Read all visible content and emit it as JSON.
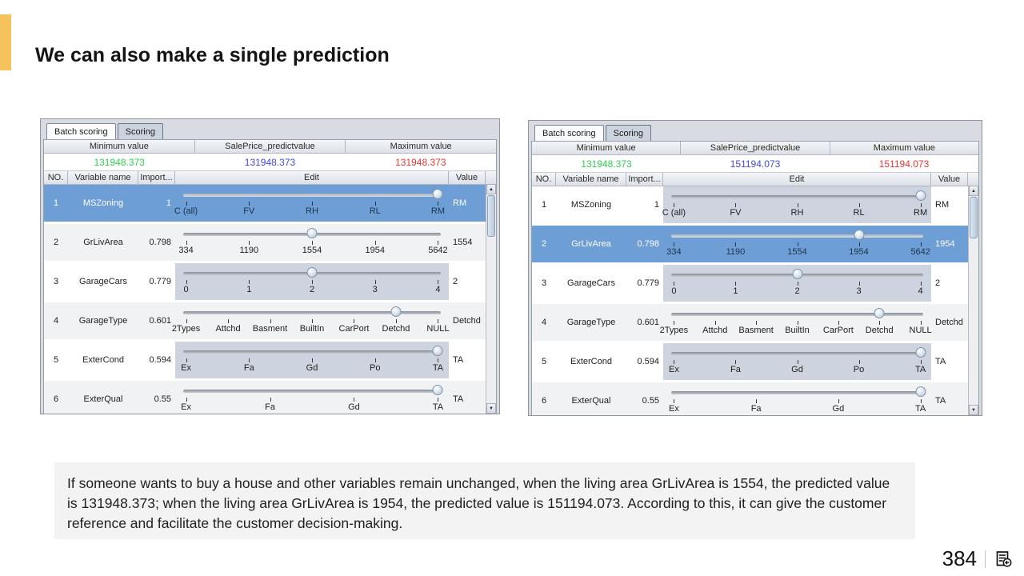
{
  "slide": {
    "title": "We can also make a single prediction",
    "accent_color": "#f6c25c",
    "note": "If someone wants to buy a house and other variables remain unchanged, when the living area GrLivArea is 1554, the predicted value is 131948.373; when the living area GrLivArea is 1954, the predicted value is 151194.073. According to this, it can give the customer reference and facilitate the customer decision-making.",
    "page_number": "384",
    "footer_icon": "return-to-overview-icon"
  },
  "ui": {
    "scroll_up_icon": "▲",
    "scroll_down_icon": "▼",
    "selected_row_color": "#6d9ed6"
  },
  "panels": [
    {
      "id": "left",
      "tabs": [
        {
          "label": "Batch scoring",
          "active": false
        },
        {
          "label": "Scoring",
          "active": true
        }
      ],
      "summary": {
        "headers": [
          "Minimum value",
          "SalePrice_predictvalue",
          "Maximum value"
        ],
        "values": [
          {
            "text": "131948.373",
            "color": "#2ed04d"
          },
          {
            "text": "131948.373",
            "color": "#4646e0"
          },
          {
            "text": "131948.373",
            "color": "#f03333"
          }
        ]
      },
      "table_headers": [
        "NO.",
        "Variable name",
        "Import...",
        "Edit",
        "Value"
      ],
      "rows": [
        {
          "no": "1",
          "name": "MSZoning",
          "importance": "1",
          "ticks": [
            "C (all)",
            "FV",
            "RH",
            "RL",
            "RM"
          ],
          "handle_index": 4,
          "value": "RM",
          "selected": true
        },
        {
          "no": "2",
          "name": "GrLivArea",
          "importance": "0.798",
          "ticks": [
            "334",
            "1190",
            "1554",
            "1954",
            "5642"
          ],
          "handle_index": 2,
          "value": "1554",
          "selected": false
        },
        {
          "no": "3",
          "name": "GarageCars",
          "importance": "0.779",
          "ticks": [
            "0",
            "1",
            "2",
            "3",
            "4"
          ],
          "handle_index": 2,
          "value": "2",
          "selected": false
        },
        {
          "no": "4",
          "name": "GarageType",
          "importance": "0.601",
          "ticks": [
            "2Types",
            "Attchd",
            "Basment",
            "BuiltIn",
            "CarPort",
            "Detchd",
            "NULL"
          ],
          "handle_index": 5,
          "value": "Detchd",
          "selected": false
        },
        {
          "no": "5",
          "name": "ExterCond",
          "importance": "0.594",
          "ticks": [
            "Ex",
            "Fa",
            "Gd",
            "Po",
            "TA"
          ],
          "handle_index": 4,
          "value": "TA",
          "selected": false
        },
        {
          "no": "6",
          "name": "ExterQual",
          "importance": "0.55",
          "ticks": [
            "Ex",
            "Fa",
            "Gd",
            "TA"
          ],
          "handle_index": 3,
          "value": "TA",
          "selected": false
        }
      ]
    },
    {
      "id": "right",
      "tabs": [
        {
          "label": "Batch scoring",
          "active": false
        },
        {
          "label": "Scoring",
          "active": true
        }
      ],
      "summary": {
        "headers": [
          "Minimum value",
          "SalePrice_predictvalue",
          "Maximum value"
        ],
        "values": [
          {
            "text": "131948.373",
            "color": "#2ed04d"
          },
          {
            "text": "151194.073",
            "color": "#4646e0"
          },
          {
            "text": "151194.073",
            "color": "#f03333"
          }
        ]
      },
      "table_headers": [
        "NO.",
        "Variable name",
        "Import...",
        "Edit",
        "Value"
      ],
      "rows": [
        {
          "no": "1",
          "name": "MSZoning",
          "importance": "1",
          "ticks": [
            "C (all)",
            "FV",
            "RH",
            "RL",
            "RM"
          ],
          "handle_index": 4,
          "value": "RM",
          "selected": false
        },
        {
          "no": "2",
          "name": "GrLivArea",
          "importance": "0.798",
          "ticks": [
            "334",
            "1190",
            "1554",
            "1954",
            "5642"
          ],
          "handle_index": 3,
          "value": "1954",
          "selected": true
        },
        {
          "no": "3",
          "name": "GarageCars",
          "importance": "0.779",
          "ticks": [
            "0",
            "1",
            "2",
            "3",
            "4"
          ],
          "handle_index": 2,
          "value": "2",
          "selected": false
        },
        {
          "no": "4",
          "name": "GarageType",
          "importance": "0.601",
          "ticks": [
            "2Types",
            "Attchd",
            "Basment",
            "BuiltIn",
            "CarPort",
            "Detchd",
            "NULL"
          ],
          "handle_index": 5,
          "value": "Detchd",
          "selected": false
        },
        {
          "no": "5",
          "name": "ExterCond",
          "importance": "0.594",
          "ticks": [
            "Ex",
            "Fa",
            "Gd",
            "Po",
            "TA"
          ],
          "handle_index": 4,
          "value": "TA",
          "selected": false
        },
        {
          "no": "6",
          "name": "ExterQual",
          "importance": "0.55",
          "ticks": [
            "Ex",
            "Fa",
            "Gd",
            "TA"
          ],
          "handle_index": 3,
          "value": "TA",
          "selected": false
        }
      ]
    }
  ]
}
